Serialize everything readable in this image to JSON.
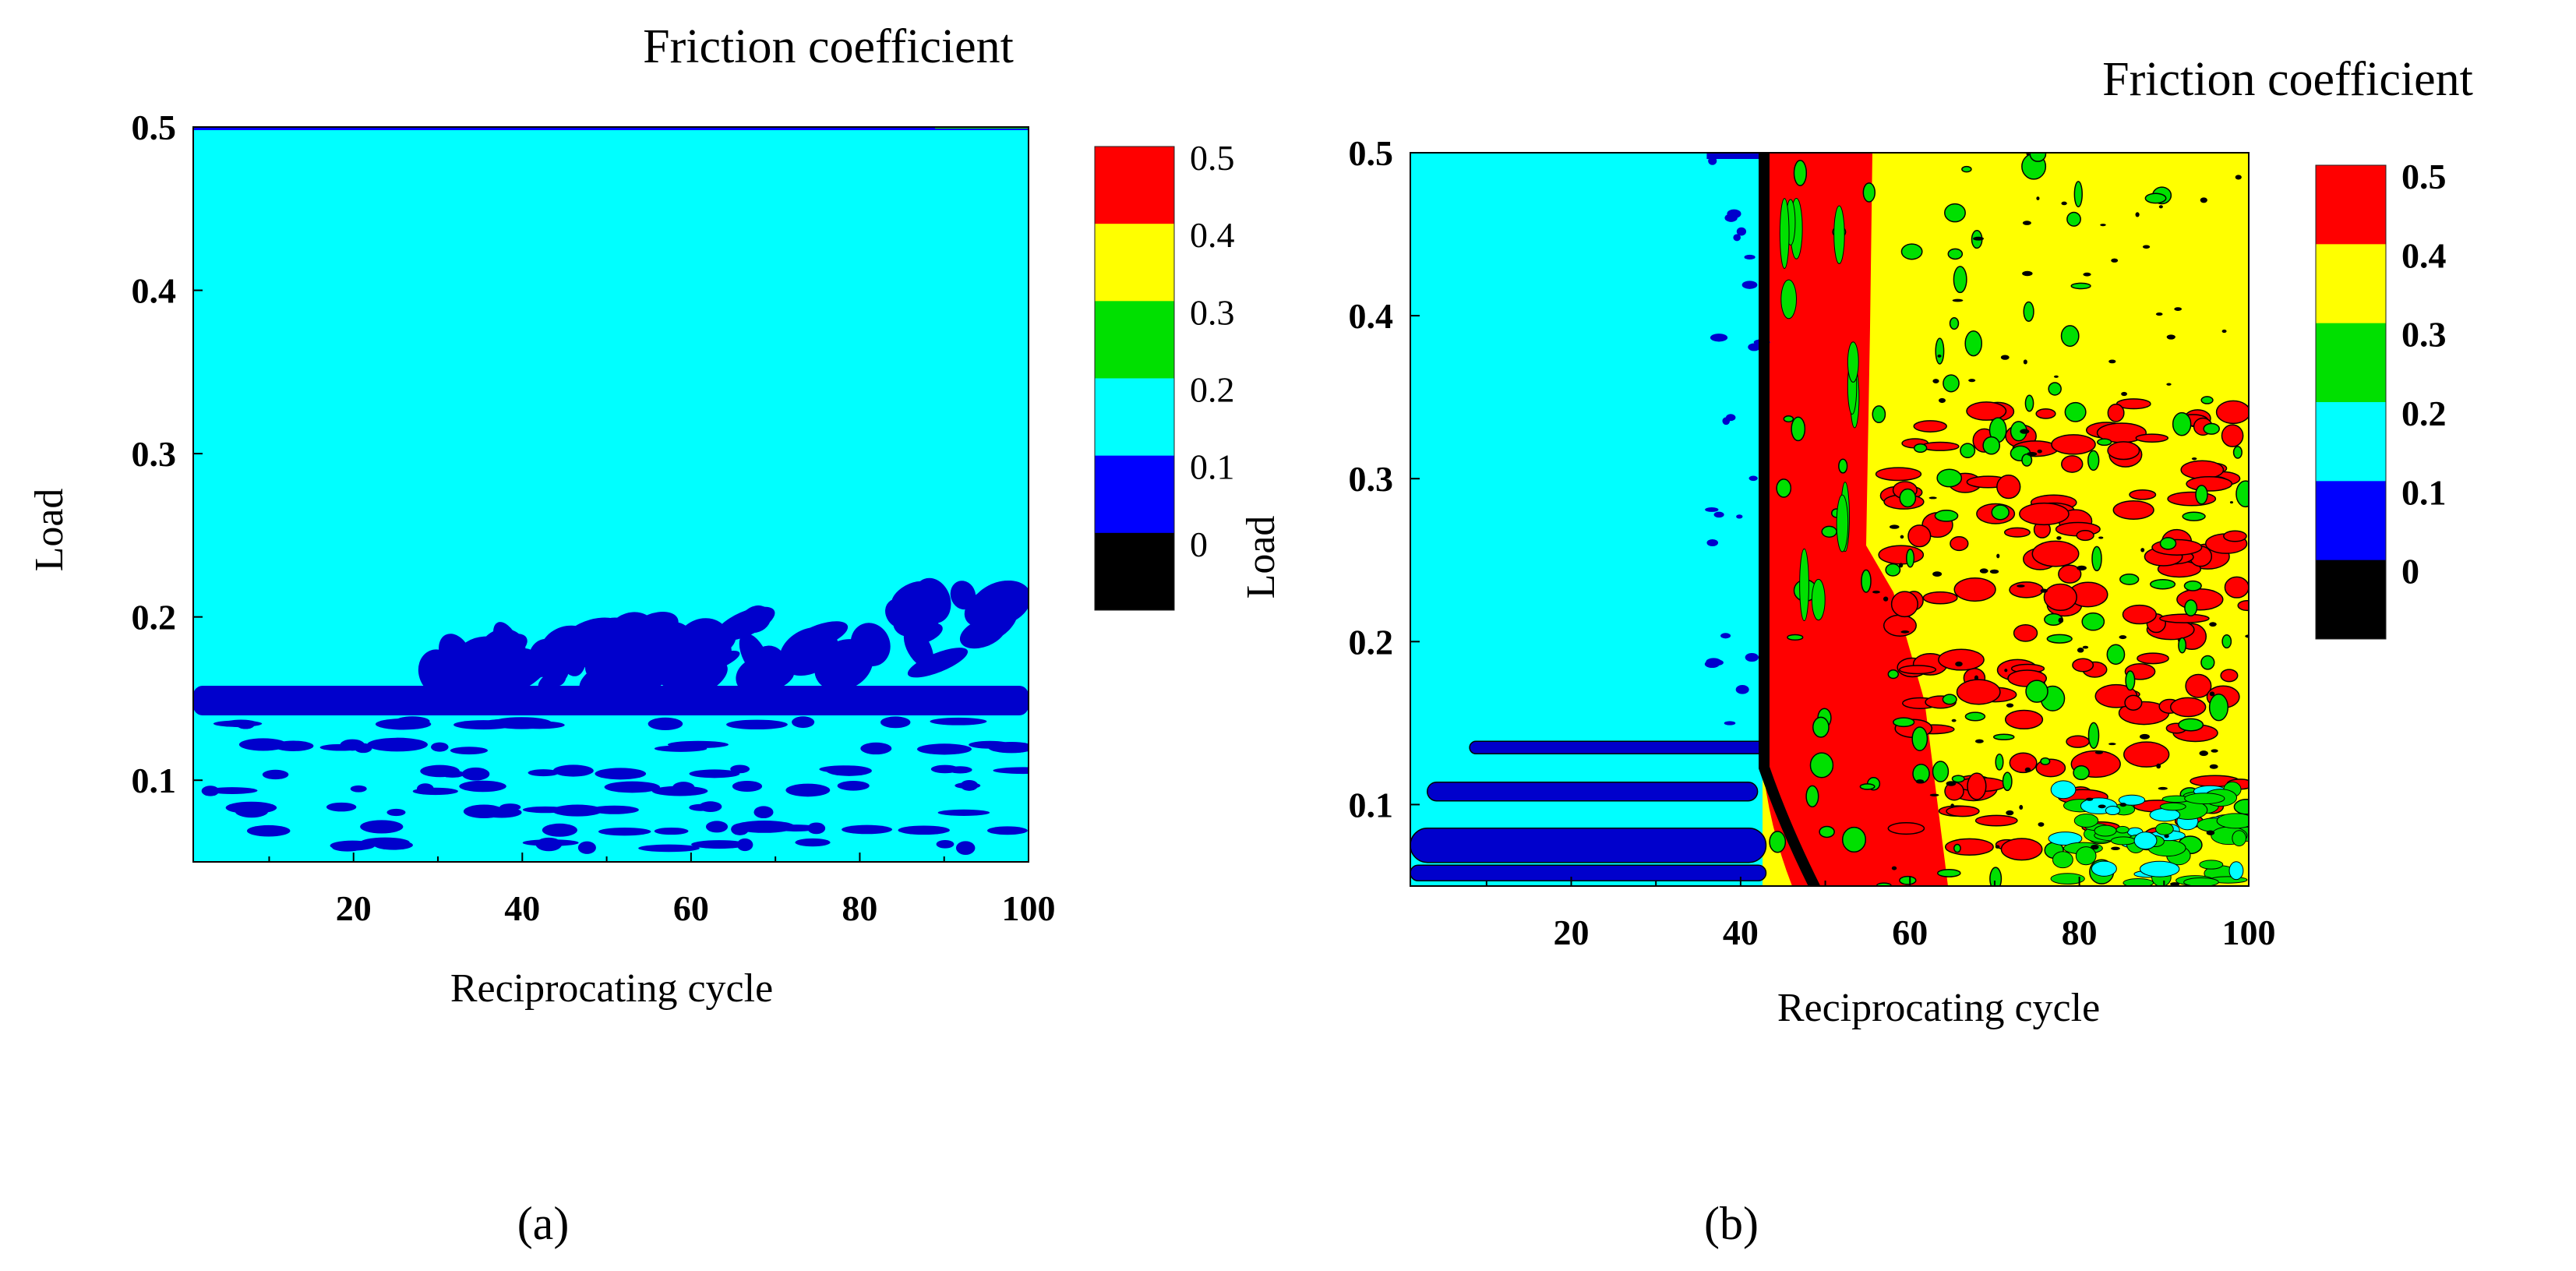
{
  "colors": {
    "black": "#000000",
    "dark_blue": "#0000cc",
    "blue": "#0000ff",
    "cyan": "#00ffff",
    "green": "#00e000",
    "yellow": "#ffff00",
    "red": "#ff0000"
  },
  "chart_data": [
    {
      "type": "heatmap",
      "panel_label": "(a)",
      "title": "Friction coefficient",
      "xlabel": "Reciprocating  cycle",
      "ylabel": "Load",
      "xlim": [
        1,
        100
      ],
      "ylim": [
        0.05,
        0.5
      ],
      "xticks": [
        20,
        40,
        60,
        80,
        100
      ],
      "xtick_labels": [
        "20",
        "40",
        "60",
        "80",
        "100"
      ],
      "yticks": [
        0.1,
        0.2,
        0.3,
        0.4,
        0.5
      ],
      "ytick_labels": [
        "0.1",
        "0.2",
        "0.3",
        "0.4",
        "0.5"
      ],
      "colorbar": {
        "levels": [
          0,
          0.1,
          0.2,
          0.3,
          0.4,
          0.5
        ],
        "labels": [
          "0.5",
          "0.4",
          "0.3",
          "0.2",
          "0.1",
          "0"
        ],
        "colors": [
          "#ff0000",
          "#ffff00",
          "#00e000",
          "#00ffff",
          "#0000ff",
          "#000000"
        ]
      },
      "regions": [
        {
          "x": [
            1,
            100
          ],
          "y": [
            0.05,
            0.5
          ],
          "level": "0.1-0.2"
        },
        {
          "x": [
            1,
            100
          ],
          "y": [
            0.14,
            0.16
          ],
          "level": "0.0-0.1",
          "note": "continuous low-friction band"
        },
        {
          "x": [
            30,
            100
          ],
          "y": [
            0.16,
            0.21
          ],
          "level": "0.0-0.1",
          "note": "scattered streaks"
        },
        {
          "x": [
            1,
            100
          ],
          "y": [
            0.05,
            0.14
          ],
          "level": "0.0-0.1",
          "note": "scattered horizontal streaks"
        }
      ]
    },
    {
      "type": "heatmap",
      "panel_label": "(b)",
      "title": "Friction coefficient",
      "xlabel": "Reciprocating  cycle",
      "ylabel": "Load",
      "xlim": [
        1,
        100
      ],
      "ylim": [
        0.05,
        0.5
      ],
      "xticks": [
        20,
        40,
        60,
        80,
        100
      ],
      "xtick_labels": [
        "20",
        "40",
        "60",
        "80",
        "100"
      ],
      "yticks": [
        0.1,
        0.2,
        0.3,
        0.4,
        0.5
      ],
      "ytick_labels": [
        "0.1",
        "0.2",
        "0.3",
        "0.4",
        "0.5"
      ],
      "colorbar": {
        "levels": [
          0,
          0.1,
          0.2,
          0.3,
          0.4,
          0.5
        ],
        "labels": [
          "0.5",
          "0.4",
          "0.3",
          "0.2",
          "0.1",
          "0"
        ],
        "colors": [
          "#ff0000",
          "#ffff00",
          "#00e000",
          "#00ffff",
          "#0000ff",
          "#000000"
        ]
      },
      "regions": [
        {
          "x": [
            1,
            43
          ],
          "y": [
            0.05,
            0.5
          ],
          "level": "0.1-0.2"
        },
        {
          "x": [
            1,
            43
          ],
          "y": [
            0.05,
            0.14
          ],
          "level": "0.0-0.1",
          "note": "horizontal streaks"
        },
        {
          "x": [
            43,
            56
          ],
          "y": [
            0.05,
            0.5
          ],
          "level": "0.4-0.5"
        },
        {
          "x": [
            56,
            100
          ],
          "y": [
            0.05,
            0.5
          ],
          "level": "0.3-0.5",
          "note": "mixed yellow/red/green"
        }
      ],
      "transition_line": {
        "x": 43,
        "y_top": 0.5,
        "y_bottom": 0.12,
        "curve_to_x": 48,
        "curve_to_y": 0.05
      }
    }
  ]
}
